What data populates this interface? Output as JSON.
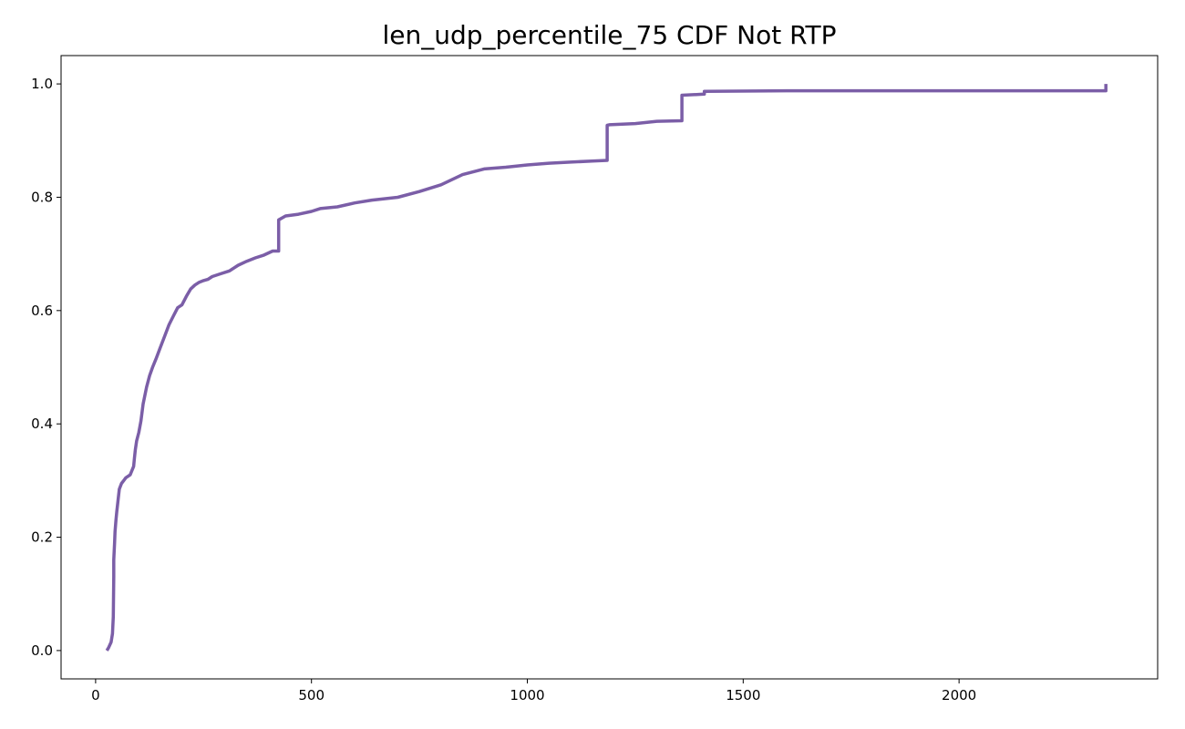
{
  "chart_data": {
    "type": "line",
    "title": "len_udp_percentile_75 CDF Not RTP",
    "xlabel": "",
    "ylabel": "",
    "xlim": [
      -80,
      2460
    ],
    "ylim": [
      -0.05,
      1.05
    ],
    "xticks": [
      0,
      500,
      1000,
      1500,
      2000
    ],
    "yticks": [
      0.0,
      0.2,
      0.4,
      0.6,
      0.8,
      1.0
    ],
    "grid": false,
    "legend": "none",
    "series": [
      {
        "color": "#7b5ea7",
        "x": [
          26,
          30,
          36,
          39,
          41,
          42,
          42,
          44,
          45,
          47,
          49,
          52,
          55,
          60,
          65,
          70,
          80,
          88,
          90,
          92,
          95,
          100,
          105,
          110,
          118,
          125,
          132,
          140,
          150,
          160,
          170,
          180,
          190,
          200,
          210,
          220,
          230,
          240,
          250,
          260,
          270,
          290,
          310,
          330,
          350,
          370,
          390,
          410,
          424,
          424,
          440,
          470,
          500,
          520,
          560,
          600,
          640,
          700,
          750,
          800,
          850,
          900,
          950,
          1000,
          1050,
          1100,
          1150,
          1185,
          1185,
          1190,
          1250,
          1300,
          1358,
          1358,
          1410,
          1410,
          1600,
          1800,
          2000,
          2200,
          2340,
          2340
        ],
        "y": [
          0.0,
          0.005,
          0.015,
          0.03,
          0.06,
          0.13,
          0.16,
          0.19,
          0.21,
          0.23,
          0.245,
          0.265,
          0.285,
          0.295,
          0.3,
          0.305,
          0.31,
          0.325,
          0.34,
          0.355,
          0.37,
          0.385,
          0.405,
          0.435,
          0.465,
          0.485,
          0.5,
          0.515,
          0.535,
          0.555,
          0.575,
          0.59,
          0.605,
          0.61,
          0.625,
          0.638,
          0.645,
          0.65,
          0.653,
          0.655,
          0.66,
          0.665,
          0.67,
          0.68,
          0.687,
          0.693,
          0.698,
          0.705,
          0.705,
          0.76,
          0.767,
          0.77,
          0.775,
          0.78,
          0.783,
          0.79,
          0.795,
          0.8,
          0.81,
          0.822,
          0.84,
          0.85,
          0.853,
          0.857,
          0.86,
          0.862,
          0.864,
          0.865,
          0.927,
          0.928,
          0.93,
          0.934,
          0.935,
          0.98,
          0.982,
          0.987,
          0.988,
          0.988,
          0.988,
          0.988,
          0.988,
          1.0
        ]
      }
    ]
  }
}
